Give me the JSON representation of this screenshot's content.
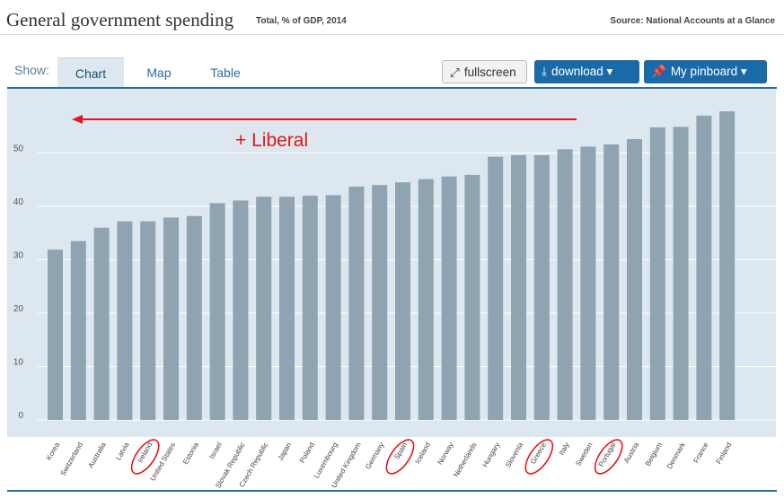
{
  "header": {
    "title": "General government spending",
    "subtitle": "Total, % of GDP, 2014",
    "source": "Source: National Accounts at a Glance"
  },
  "tabs": {
    "show_label": "Show:",
    "chart": "Chart",
    "map": "Map",
    "table": "Table"
  },
  "buttons": {
    "fullscreen": "fullscreen",
    "download": "download ▾",
    "pinboard": "My pinboard ▾"
  },
  "icons": {
    "fullscreen": "⤢",
    "download": "⤓",
    "pinboard": "📌"
  },
  "colors": {
    "bar": "#8fa3b1",
    "plot_bg": "#dde7ef",
    "accent": "#1a6aa8",
    "annotation": "#e3161b"
  },
  "chart_data": {
    "type": "bar",
    "title": "General government spending",
    "subtitle": "Total, % of GDP, 2014",
    "ylim": [
      0,
      58
    ],
    "yticks": [
      0,
      10,
      20,
      30,
      40,
      50
    ],
    "grid": true,
    "categories": [
      "Korea",
      "Switzerland",
      "Australia",
      "Latvia",
      "Ireland",
      "United States",
      "Estonia",
      "Israel",
      "Slovak Republic",
      "Czech Republic",
      "Japan",
      "Poland",
      "Luxembourg",
      "United Kingdom",
      "Germany",
      "Spain",
      "Iceland",
      "Norway",
      "Netherlands",
      "Hungary",
      "Slovenia",
      "Greece",
      "Italy",
      "Sweden",
      "Portugal",
      "Austria",
      "Belgium",
      "Denmark",
      "France",
      "Finland"
    ],
    "values": [
      31.9,
      33.5,
      36.0,
      37.2,
      37.2,
      37.9,
      38.2,
      40.6,
      41.1,
      41.8,
      41.8,
      42.0,
      42.1,
      43.7,
      44.0,
      44.5,
      45.1,
      45.6,
      45.9,
      49.3,
      49.6,
      49.6,
      50.7,
      51.2,
      51.6,
      52.6,
      54.8,
      54.9,
      57.0,
      57.8
    ],
    "annotation": {
      "text": "+ Liberal",
      "direction": "left"
    },
    "circled": [
      "Ireland",
      "Spain",
      "Greece",
      "Portugal"
    ]
  }
}
